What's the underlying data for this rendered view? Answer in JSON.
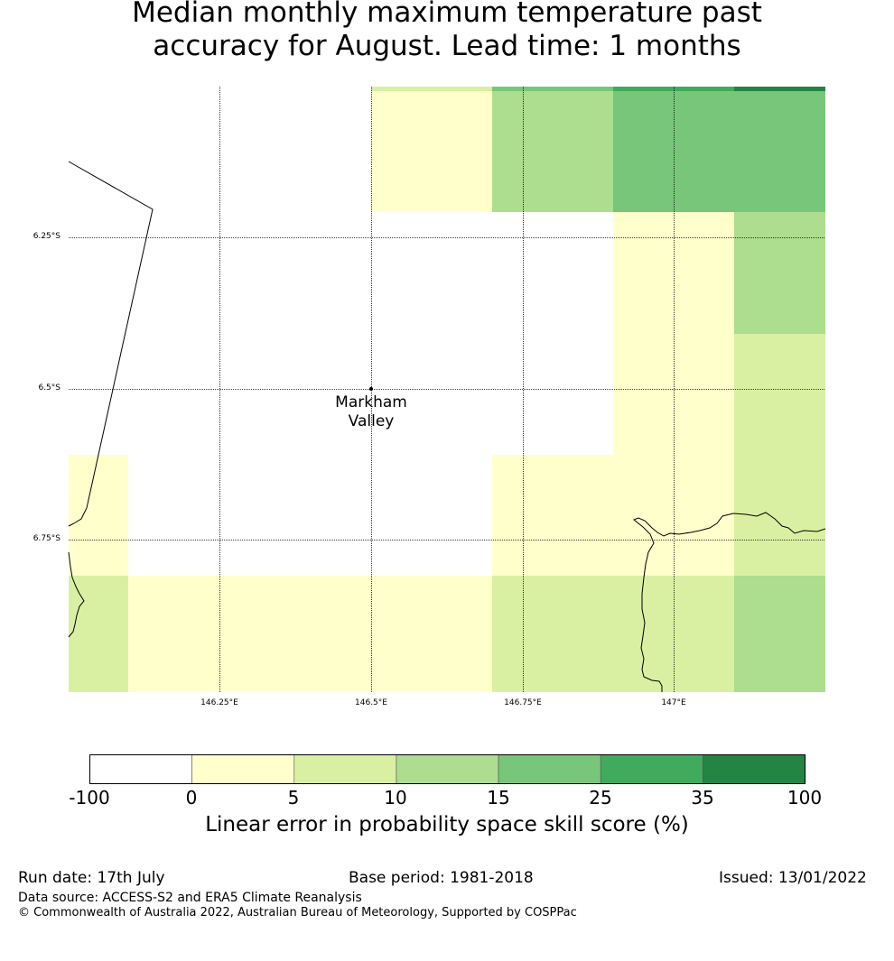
{
  "title": {
    "line1": "Median monthly maximum temperature past",
    "line2": "accuracy for August. Lead time: 1 months"
  },
  "map": {
    "lat_labels": [
      "6.25°S",
      "6.5°S",
      "6.75°S"
    ],
    "lon_labels": [
      "146.25°E",
      "146.5°E",
      "146.75°E",
      "147°E"
    ],
    "place": {
      "line1": "Markham",
      "line2": "Valley"
    }
  },
  "colorbar": {
    "ticks": [
      "-100",
      "0",
      "5",
      "10",
      "15",
      "25",
      "35",
      "100"
    ],
    "colors": [
      "#ffffff",
      "#ffffcc",
      "#d9f0a3",
      "#addd8e",
      "#78c679",
      "#41ab5d",
      "#238443"
    ],
    "label": "Linear error in probability space skill score (%)"
  },
  "footer": {
    "run_date": "Run date: 17th July",
    "base_period": "Base period: 1981-2018",
    "issued": "Issued: 13/01/2022",
    "data_source": "Data source: ACCESS-S2 and ERA5 Climate Reanalysis",
    "copyright": "© Commonwealth of Australia 2022, Australian Bureau of Meteorology, Supported by COSPPac"
  }
}
